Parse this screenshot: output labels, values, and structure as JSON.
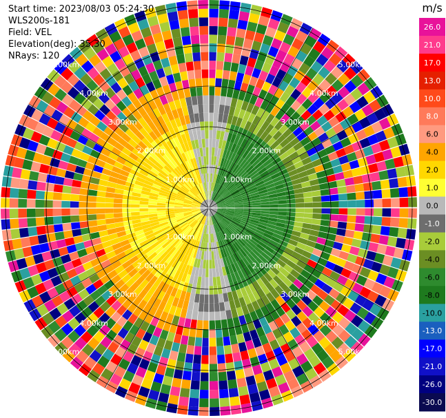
{
  "info": {
    "start_time": "Start time: 2023/08/03 05:24:30",
    "instrument": "WLS200s-181",
    "field": "Field: VEL",
    "elevation": "Elevation(deg): 35.30",
    "nrays": "NRays: 120"
  },
  "colorbar": {
    "unit": "m/s",
    "ticks": [
      "26.0",
      "21.0",
      "17.0",
      "13.0",
      "10.0",
      "8.0",
      "6.0",
      "4.0",
      "2.0",
      "1.0",
      "0.0",
      "-1.0",
      "-2.0",
      "-4.0",
      "-6.0",
      "-8.0",
      "-10.0",
      "-13.0",
      "-17.0",
      "-21.0",
      "-26.0",
      "-30.0"
    ],
    "colors": [
      "#e8129a",
      "#ff3a8c",
      "#ff0000",
      "#e51f00",
      "#ff4a1a",
      "#ff7a5a",
      "#ff9a80",
      "#ffa500",
      "#ffd700",
      "#ffff33",
      "#b9b9b9",
      "#6e6e6e",
      "#a8cc3a",
      "#6b8e23",
      "#2e8b2e",
      "#1e7a1e",
      "#2aa0a0",
      "#1a5fbf",
      "#0000ff",
      "#1010c8",
      "#000080",
      "#0a0a50"
    ]
  },
  "chart_data": {
    "type": "polar-ppi",
    "field": "VEL",
    "units": "m/s",
    "elevation_deg": 35.3,
    "n_rays": 120,
    "ring_labels": [
      "1.00km",
      "2.00km",
      "3.00km",
      "4.00km",
      "5.00km"
    ],
    "color_scale": {
      "boundaries": [
        30.0,
        26.0,
        21.0,
        17.0,
        13.0,
        10.0,
        8.0,
        6.0,
        4.0,
        2.0,
        1.0,
        0.0,
        -1.0,
        -2.0,
        -4.0,
        -6.0,
        -8.0,
        -10.0,
        -13.0,
        -17.0,
        -21.0,
        -26.0,
        -30.0
      ]
    },
    "notes_free": false
  }
}
